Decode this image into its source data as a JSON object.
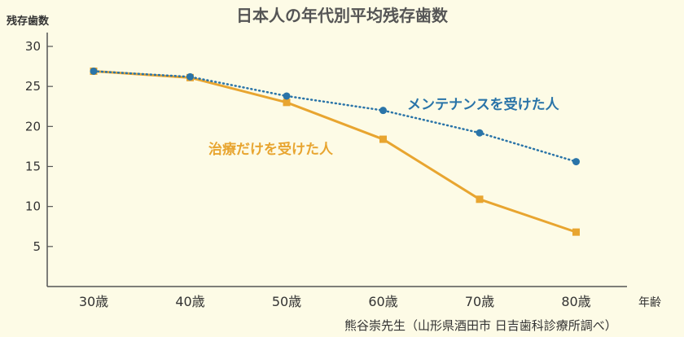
{
  "chart_data": {
    "type": "line",
    "title": "日本人の年代別平均残存歯数",
    "ylabel": "残存歯数",
    "xlabel": "年齢",
    "categories": [
      "30歳",
      "40歳",
      "50歳",
      "60歳",
      "70歳",
      "80歳"
    ],
    "ylim": [
      0,
      30
    ],
    "yticks": [
      5,
      10,
      15,
      20,
      25,
      30
    ],
    "grid": false,
    "series": [
      {
        "name": "メンテナンスを受けた人",
        "color": "#2a74a8",
        "style": "dotted",
        "marker": "circle",
        "values": [
          26.9,
          26.2,
          23.8,
          22.0,
          19.2,
          15.6
        ]
      },
      {
        "name": "治療だけを受けた人",
        "color": "#e8a530",
        "style": "solid",
        "marker": "square",
        "values": [
          26.9,
          26.1,
          23.0,
          18.4,
          10.9,
          6.8
        ]
      }
    ],
    "source": "熊谷崇先生（山形県酒田市 日吉歯科診療所調べ）"
  }
}
